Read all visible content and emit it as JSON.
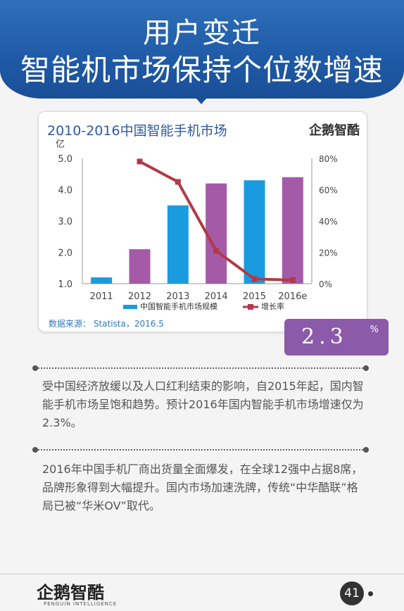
{
  "header": {
    "title_line1": "用户变迁",
    "title_line2": "智能机市场保持个位数增速"
  },
  "chart": {
    "title": "2010-2016中国智能手机市场",
    "logo": "企鹅智酷",
    "source": "数据来源： Statista，2016.5"
  },
  "chart_data": {
    "type": "bar",
    "categories": [
      "2011",
      "2012",
      "2013",
      "2014",
      "2015",
      "2016e"
    ],
    "series": [
      {
        "name": "中国智能手机市场规模",
        "type": "bar",
        "values": [
          1.2,
          2.1,
          3.5,
          4.2,
          4.3,
          4.4
        ],
        "colors": [
          "#1a9be0",
          "#a55aa8",
          "#1a9be0",
          "#a55aa8",
          "#1a9be0",
          "#a55aa8"
        ]
      },
      {
        "name": "增长率",
        "type": "line",
        "values": [
          null,
          78,
          65,
          21,
          3,
          2.3
        ],
        "color": "#b03a48"
      }
    ],
    "ylabel": "亿",
    "ylim": [
      1.0,
      5.0
    ],
    "yticks": [
      "5.0",
      "4.0",
      "3.0",
      "2.0",
      "1.0"
    ],
    "y2lim": [
      0,
      80
    ],
    "y2ticks": [
      "80%",
      "60%",
      "40%",
      "20%",
      "0%"
    ],
    "legend": "bottom"
  },
  "highlight": {
    "value": "2.3",
    "unit": "%"
  },
  "paragraphs": [
    "受中国经济放缓以及人口红利结束的影响，自2015年起，国内智能手机市场呈饱和趋势。预计2016年国内智能手机市场增速仅为2.3%。",
    "2016年中国手机厂商出货量全面爆发，在全球12强中占据8席，品牌形象得到大幅提升。国内市场加速洗牌，传统“中华酷联”格局已被“华米OV”取代。"
  ],
  "footer": {
    "logo": "企鹅智酷",
    "logo_sub": "PENGUIN INTELLIGENCE",
    "page": "41"
  }
}
